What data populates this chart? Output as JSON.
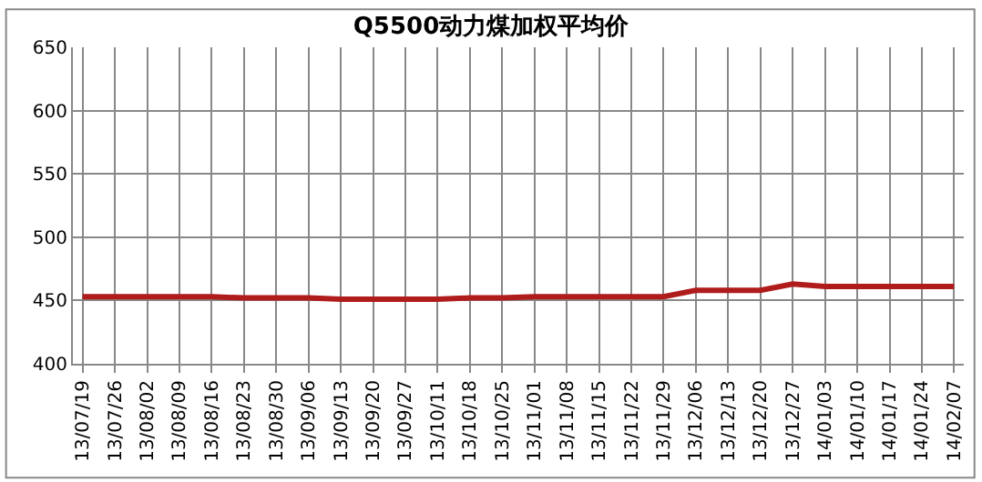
{
  "chart_data": {
    "type": "line",
    "title": "Q5500动力煤加权平均价",
    "categories": [
      "13/07/19",
      "13/07/26",
      "13/08/02",
      "13/08/09",
      "13/08/16",
      "13/08/23",
      "13/08/30",
      "13/09/06",
      "13/09/13",
      "13/09/20",
      "13/09/27",
      "13/10/11",
      "13/10/18",
      "13/10/25",
      "13/11/01",
      "13/11/08",
      "13/11/15",
      "13/11/22",
      "13/11/29",
      "13/12/06",
      "13/12/13",
      "13/12/20",
      "13/12/27",
      "14/01/03",
      "14/01/10",
      "14/01/17",
      "14/01/24",
      "14/02/07"
    ],
    "series": [
      {
        "color": "#b01c1c",
        "values": [
          453,
          453,
          453,
          453,
          453,
          452,
          452,
          452,
          451,
          451,
          451,
          451,
          452,
          452,
          453,
          453,
          453,
          453,
          453,
          458,
          458,
          458,
          463,
          461,
          461,
          461,
          461,
          461
        ]
      }
    ],
    "ylim": [
      400,
      650
    ],
    "yticks": [
      400,
      450,
      500,
      550,
      600,
      650
    ],
    "grid": true,
    "marker": "none",
    "line_style": "solid"
  }
}
